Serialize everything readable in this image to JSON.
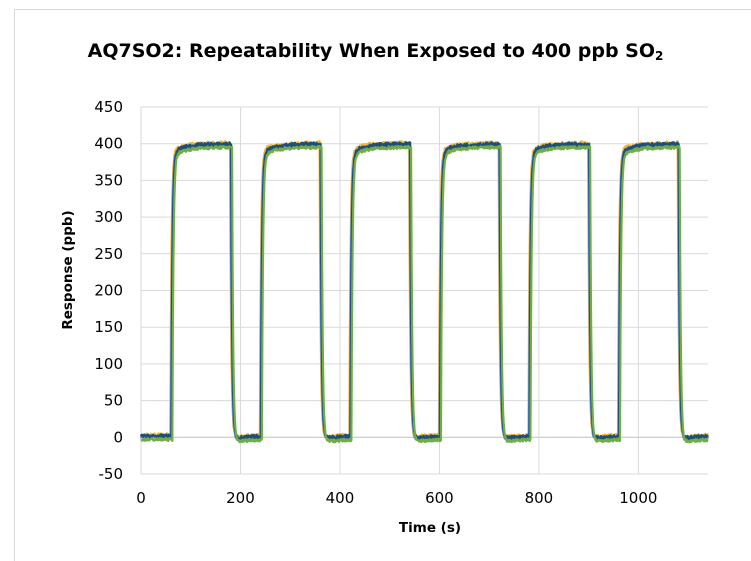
{
  "chart_data": {
    "type": "line",
    "title": "AQ7SO2: Repeatability When Exposed to 400 ppb SO",
    "title_subscript": "2",
    "xlabel": "Time (s)",
    "ylabel": "Response (ppb)",
    "xlim": [
      0,
      1140
    ],
    "ylim": [
      -50,
      450
    ],
    "x_ticks": [
      "0",
      "200",
      "400",
      "600",
      "800",
      "1000"
    ],
    "x_tick_values": [
      0,
      200,
      400,
      600,
      800,
      1000
    ],
    "y_ticks": [
      "450",
      "400",
      "350",
      "300",
      "250",
      "200",
      "150",
      "100",
      "50",
      "0",
      "-50"
    ],
    "y_tick_values": [
      450,
      400,
      350,
      300,
      250,
      200,
      150,
      100,
      50,
      0,
      -50
    ],
    "grid": true,
    "legend": "none",
    "exposure_windows": [
      [
        60,
        180
      ],
      [
        240,
        360
      ],
      [
        420,
        540
      ],
      [
        600,
        720
      ],
      [
        780,
        900
      ],
      [
        960,
        1080
      ]
    ],
    "levels": {
      "baseline": 0,
      "plateau": 398
    },
    "x_end": 1140,
    "series": [
      {
        "color": "#c9c9c9",
        "noise": 3.5,
        "offset": 0.5,
        "lag": 2
      },
      {
        "color": "#f2b632",
        "noise": 3.0,
        "offset": 2.5,
        "lag": -1
      },
      {
        "color": "#6da0d8",
        "noise": 2.5,
        "offset": 0.0,
        "lag": 0
      },
      {
        "color": "#1f4e79",
        "noise": 2.5,
        "offset": 1.5,
        "lag": 1
      },
      {
        "color": "#70ad47",
        "noise": 2.0,
        "offset": -3.0,
        "lag": 3
      }
    ]
  }
}
